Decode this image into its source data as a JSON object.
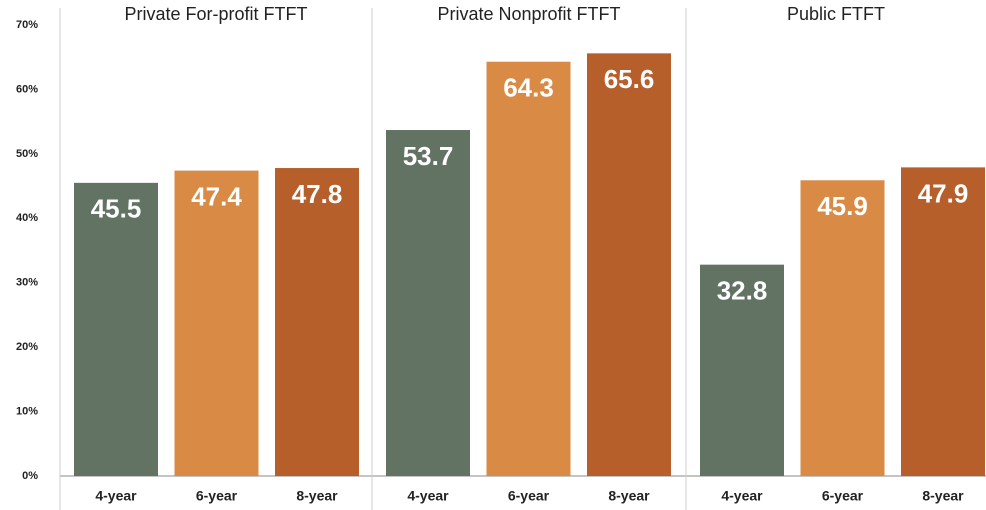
{
  "chart_data": [
    {
      "type": "bar",
      "title": "Private For-profit FTFT",
      "categories": [
        "4-year",
        "6-year",
        "8-year"
      ],
      "values": [
        45.5,
        47.4,
        47.8
      ],
      "colors": [
        "#627263",
        "#d98a45",
        "#b65f2b"
      ],
      "ylim": [
        0,
        70
      ],
      "yticks": [
        {
          "value": 0,
          "label": "0%"
        },
        {
          "value": 10,
          "label": "10%"
        },
        {
          "value": 20,
          "label": "20%"
        },
        {
          "value": 30,
          "label": "30%"
        },
        {
          "value": 40,
          "label": "40%"
        },
        {
          "value": 50,
          "label": "50%"
        },
        {
          "value": 60,
          "label": "60%"
        },
        {
          "value": 70,
          "label": "70%"
        }
      ]
    },
    {
      "type": "bar",
      "title": "Private Nonprofit FTFT",
      "categories": [
        "4-year",
        "6-year",
        "8-year"
      ],
      "values": [
        53.7,
        64.3,
        65.6
      ],
      "colors": [
        "#627263",
        "#d98a45",
        "#b65f2b"
      ],
      "ylim": [
        0,
        70
      ]
    },
    {
      "type": "bar",
      "title": "Public FTFT",
      "categories": [
        "4-year",
        "6-year",
        "8-year"
      ],
      "values": [
        32.8,
        45.9,
        47.9
      ],
      "colors": [
        "#627263",
        "#d98a45",
        "#b65f2b"
      ],
      "ylim": [
        0,
        70
      ]
    }
  ]
}
